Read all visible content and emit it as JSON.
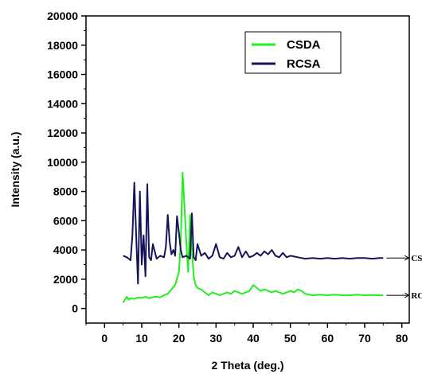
{
  "chart_data": {
    "type": "line",
    "xlabel": "2 Theta (deg.)",
    "ylabel": "Intensity (a.u.)",
    "xlim": [
      -5,
      82
    ],
    "ylim": [
      -1000,
      20000
    ],
    "xticks": [
      0,
      10,
      20,
      30,
      40,
      50,
      60,
      70,
      80
    ],
    "yticks": [
      0,
      2000,
      4000,
      6000,
      8000,
      10000,
      12000,
      14000,
      16000,
      18000,
      20000
    ],
    "legend_position": "top-right",
    "grid": false,
    "series": [
      {
        "name": "CSDA",
        "color": "#22ee22",
        "x": [
          5,
          5.5,
          6,
          6.5,
          7,
          8,
          9,
          10,
          11,
          12,
          13,
          14,
          15,
          16,
          17,
          18,
          19,
          20,
          20.5,
          21,
          21.5,
          22,
          22.5,
          23,
          23.5,
          24,
          24.5,
          25,
          26,
          27,
          28,
          29,
          30,
          31,
          32,
          33,
          34,
          35,
          36,
          37,
          38,
          39,
          40,
          41,
          42,
          43,
          44,
          45,
          46,
          47,
          48,
          49,
          50,
          51,
          52,
          53,
          54,
          55,
          56,
          58,
          60,
          62,
          64,
          66,
          68,
          70,
          72,
          74,
          75
        ],
        "y": [
          400,
          600,
          800,
          600,
          700,
          650,
          750,
          720,
          800,
          700,
          780,
          800,
          750,
          900,
          1000,
          1300,
          1600,
          2500,
          4500,
          9300,
          7000,
          4500,
          2500,
          6400,
          4000,
          2200,
          1600,
          1400,
          1300,
          1100,
          900,
          1100,
          1000,
          900,
          1000,
          1100,
          1000,
          1200,
          1100,
          1000,
          1100,
          1200,
          1600,
          1400,
          1200,
          1300,
          1200,
          1100,
          1200,
          1100,
          1000,
          1100,
          1200,
          1100,
          1300,
          1200,
          1000,
          950,
          900,
          950,
          900,
          950,
          900,
          900,
          950,
          900,
          920,
          900,
          900
        ]
      },
      {
        "name": "RCSA",
        "color": "#14145a",
        "x": [
          5,
          6,
          7,
          7.5,
          8,
          8.5,
          9,
          9.5,
          10,
          10.5,
          11,
          11.5,
          12,
          12.5,
          13,
          14,
          15,
          16,
          16.5,
          17,
          17.5,
          18,
          18.5,
          19,
          19.5,
          20,
          20.5,
          21,
          22,
          23,
          23.5,
          24,
          24.5,
          25,
          26,
          27,
          28,
          29,
          30,
          31,
          32,
          33,
          34,
          35,
          36,
          37,
          38,
          39,
          40,
          41,
          42,
          43,
          44,
          45,
          46,
          47,
          48,
          49,
          50,
          52,
          54,
          56,
          58,
          60,
          62,
          64,
          66,
          68,
          70,
          72,
          74,
          75
        ],
        "y": [
          3600,
          3500,
          3300,
          5000,
          8600,
          5000,
          1700,
          8000,
          3000,
          5000,
          2200,
          8500,
          3500,
          3300,
          4400,
          3400,
          3600,
          3500,
          4200,
          6400,
          4600,
          3700,
          4000,
          3600,
          6300,
          5200,
          4000,
          3500,
          3600,
          3400,
          6500,
          3500,
          3300,
          4400,
          3600,
          3800,
          3400,
          3600,
          4400,
          3500,
          3400,
          3800,
          3500,
          3600,
          4200,
          3500,
          3900,
          3500,
          3600,
          3800,
          3600,
          3900,
          3700,
          4000,
          3600,
          3500,
          3800,
          3500,
          3600,
          3500,
          3400,
          3450,
          3400,
          3450,
          3400,
          3450,
          3400,
          3450,
          3450,
          3400,
          3450,
          3450
        ]
      }
    ],
    "annotations": [
      {
        "text": "CSDA",
        "x": 75,
        "y": 3450
      },
      {
        "text": "RCSA",
        "x": 75,
        "y": 900
      }
    ]
  }
}
